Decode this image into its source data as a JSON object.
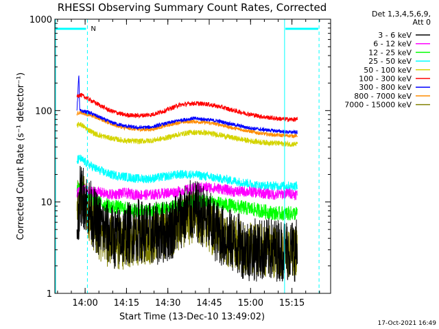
{
  "chart_data": {
    "type": "line",
    "title": "RHESSI Observing Summary Count Rates, Corrected",
    "xlabel": "Start Time (13-Dec-10 13:49:02)",
    "ylabel": "Corrected Count Rate (s⁻¹ detector⁻¹)",
    "yscale": "log",
    "ylim": [
      1,
      1000
    ],
    "xlim_minutes": [
      0,
      100
    ],
    "x_ticks": [
      {
        "label": "14:00",
        "minute": 10.97
      },
      {
        "label": "14:15",
        "minute": 25.97
      },
      {
        "label": "14:30",
        "minute": 40.97
      },
      {
        "label": "14:45",
        "minute": 55.97
      },
      {
        "label": "15:00",
        "minute": 70.97
      },
      {
        "label": "15:15",
        "minute": 85.97
      }
    ],
    "y_ticks": [
      {
        "label": "1",
        "value": 1
      },
      {
        "label": "10",
        "value": 10
      },
      {
        "label": "100",
        "value": 100
      },
      {
        "label": "1000",
        "value": 1000
      }
    ],
    "legend_header": [
      "Det 1,3,4,5,6,9,",
      "Att 0"
    ],
    "legend_position": "right",
    "series": [
      {
        "name": "3 - 6 keV",
        "color": "#000000",
        "x": [
          8,
          9,
          10,
          12,
          15,
          18,
          22,
          26,
          30,
          34,
          38,
          42,
          46,
          50,
          54,
          58,
          62,
          66,
          70,
          74,
          78,
          82,
          86,
          88
        ],
        "y": [
          5,
          11,
          12,
          9,
          6,
          5,
          4,
          4.5,
          5,
          4.5,
          4.5,
          5,
          7,
          8,
          7,
          5,
          4,
          3.5,
          3,
          3,
          3,
          3,
          3,
          3
        ],
        "noise": 0.35
      },
      {
        "name": "6 - 12 keV",
        "color": "#ff00ff",
        "x": [
          8,
          9,
          12,
          15,
          20,
          25,
          30,
          35,
          40,
          45,
          50,
          55,
          60,
          65,
          70,
          75,
          80,
          85,
          88
        ],
        "y": [
          12,
          14,
          13,
          13,
          12,
          12.5,
          12,
          12,
          12.5,
          13,
          14,
          14.5,
          14,
          13,
          13,
          12.5,
          12,
          12.5,
          12
        ],
        "noise": 0.06
      },
      {
        "name": "12 - 25 keV",
        "color": "#00ff00",
        "x": [
          8,
          9,
          12,
          15,
          20,
          25,
          30,
          35,
          40,
          45,
          50,
          55,
          60,
          65,
          70,
          75,
          80,
          85,
          88
        ],
        "y": [
          13,
          16,
          12,
          10,
          9,
          8.5,
          8,
          8,
          8.5,
          9,
          10,
          10,
          9.5,
          9,
          8.5,
          8,
          7.5,
          7.5,
          7.5
        ],
        "noise": 0.08
      },
      {
        "name": "25 - 50 keV",
        "color": "#00ffff",
        "x": [
          8,
          9,
          12,
          15,
          20,
          25,
          30,
          35,
          40,
          45,
          50,
          55,
          60,
          65,
          70,
          75,
          80,
          85,
          88
        ],
        "y": [
          28,
          30,
          26,
          23,
          20,
          19,
          18,
          18,
          19,
          20,
          20,
          19,
          18,
          17,
          16,
          15,
          15,
          15,
          15
        ],
        "noise": 0.05
      },
      {
        "name": "50 - 100 keV",
        "color": "#d4d400",
        "x": [
          8,
          9,
          12,
          15,
          20,
          25,
          30,
          35,
          40,
          45,
          50,
          55,
          60,
          65,
          70,
          75,
          80,
          85,
          88
        ],
        "y": [
          68,
          72,
          62,
          55,
          50,
          47,
          46,
          47,
          50,
          55,
          58,
          57,
          54,
          50,
          47,
          45,
          44,
          43,
          43
        ],
        "noise": 0.03
      },
      {
        "name": "100 - 300 keV",
        "color": "#ff0000",
        "x": [
          8,
          9,
          12,
          15,
          20,
          25,
          30,
          35,
          40,
          45,
          50,
          55,
          60,
          65,
          70,
          75,
          80,
          85,
          88
        ],
        "y": [
          140,
          150,
          135,
          120,
          100,
          90,
          88,
          90,
          100,
          115,
          120,
          118,
          110,
          100,
          92,
          86,
          82,
          80,
          80
        ],
        "noise": 0.025
      },
      {
        "name": "300 - 800 keV",
        "color": "#0000ff",
        "x": [
          8,
          8.7,
          9,
          12,
          15,
          20,
          25,
          30,
          35,
          40,
          45,
          50,
          55,
          60,
          65,
          70,
          75,
          80,
          85,
          88
        ],
        "y": [
          100,
          250,
          100,
          96,
          88,
          75,
          68,
          65,
          66,
          72,
          78,
          82,
          80,
          76,
          70,
          65,
          62,
          60,
          58,
          58
        ],
        "noise": 0.02
      },
      {
        "name": "800 - 7000 keV",
        "color": "#ff8c00",
        "x": [
          8,
          9,
          12,
          15,
          20,
          25,
          30,
          35,
          40,
          45,
          50,
          55,
          60,
          65,
          70,
          75,
          80,
          85,
          88
        ],
        "y": [
          92,
          96,
          90,
          85,
          72,
          65,
          62,
          62,
          68,
          74,
          76,
          74,
          70,
          64,
          60,
          56,
          54,
          53,
          53
        ],
        "noise": 0.02
      },
      {
        "name": "7000 - 15000 keV",
        "color": "#808000",
        "x": [
          8,
          9,
          10,
          12,
          15,
          18,
          22,
          26,
          30,
          34,
          38,
          42,
          46,
          50,
          54,
          58,
          62,
          66,
          70,
          74,
          78,
          82,
          86,
          88
        ],
        "y": [
          8,
          11,
          11,
          8,
          5,
          4,
          3.5,
          3.5,
          4,
          4,
          4.5,
          5,
          6,
          7,
          6,
          5,
          4,
          3.5,
          3,
          3,
          3,
          2.8,
          2.8,
          2.8
        ],
        "noise": 0.3
      }
    ],
    "attenuator_segments": [
      {
        "label": "N",
        "start_minute": 0,
        "end_minute": 11.8
      }
    ],
    "annotations": {
      "timestamp": "17-Oct-2021 16:49"
    }
  }
}
